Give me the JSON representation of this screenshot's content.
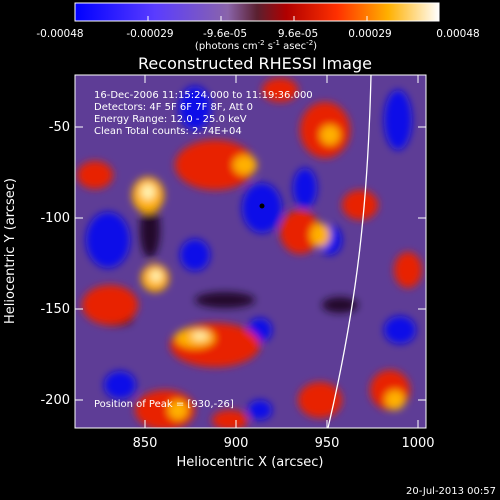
{
  "colorbar": {
    "ticks": [
      "-0.00048",
      "-0.00029",
      "-9.6e-05",
      "9.6e-05",
      "0.00029",
      "0.00048"
    ],
    "unit_prefix": "(photons cm",
    "unit_exp1": "-2",
    "unit_mid": " s",
    "unit_exp2": "-1",
    "unit_mid2": " asec",
    "unit_exp3": "-2",
    "unit_suffix": ")"
  },
  "title": "Reconstructed RHESSI Image",
  "info": {
    "line1": "16-Dec-2006 11:15:24.000 to 11:19:36.000",
    "line2": "Detectors: 4F 5F 6F 7F 8F, Att 0",
    "line3": "Energy Range: 12.0 - 25.0 keV",
    "line4": "Clean     Total counts: 2.74E+04"
  },
  "peak_label": "Position of Peak = [930,-26]",
  "axes": {
    "xlabel": "Heliocentric X (arcsec)",
    "ylabel": "Heliocentric Y (arcsec)",
    "xticks": [
      "850",
      "900",
      "950",
      "1000"
    ],
    "yticks": [
      "-50",
      "-100",
      "-150",
      "-200"
    ],
    "xlim": [
      812,
      1003
    ],
    "ylim": [
      -215,
      -22
    ]
  },
  "footer_timestamp": "20-Jul-2013 00:57",
  "colors": {
    "background": "#000000",
    "text": "#ffffff",
    "neg_extreme": "#0000ff",
    "neutral": "#6a3d9a",
    "pos_mid": "#ff2000",
    "pos_extreme": "#ffffff"
  }
}
